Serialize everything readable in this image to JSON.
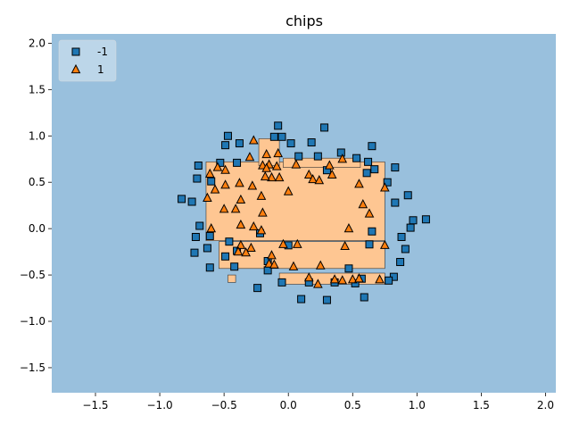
{
  "chart_data": {
    "type": "scatter",
    "title": "chips",
    "xlabel": "",
    "ylabel": "",
    "xlim": [
      -1.84,
      2.08
    ],
    "ylim": [
      -1.77,
      2.1
    ],
    "xticks": [
      -1.5,
      -1.0,
      -0.5,
      0.0,
      0.5,
      1.0,
      1.5,
      2.0
    ],
    "yticks": [
      -1.5,
      -1.0,
      -0.5,
      0.0,
      0.5,
      1.0,
      1.5,
      2.0
    ],
    "grid": false,
    "legend_position": "top-left",
    "colors": {
      "background_region": "#99c0dd",
      "decision_region": "#fec692",
      "class_neg": "#1f77b4",
      "class_pos": "#ff7f0e",
      "marker_edge": "#000000"
    },
    "decision_region_rects": [
      [
        -0.64,
        -0.13,
        0.75,
        0.72
      ],
      [
        -0.23,
        0.68,
        -0.07,
        0.97
      ],
      [
        -0.04,
        0.66,
        0.56,
        0.76
      ],
      [
        -0.54,
        -0.43,
        0.75,
        -0.14
      ],
      [
        -0.07,
        -0.6,
        0.75,
        -0.48
      ],
      [
        -0.47,
        -0.58,
        -0.41,
        -0.5
      ]
    ],
    "series": [
      {
        "name": "-1",
        "marker": "square",
        "points": [
          [
            -0.08,
            1.11
          ],
          [
            -0.05,
            0.99
          ],
          [
            0.28,
            1.09
          ],
          [
            0.18,
            0.93
          ],
          [
            0.02,
            0.92
          ],
          [
            -0.11,
            0.99
          ],
          [
            0.65,
            0.89
          ],
          [
            -0.49,
            0.9
          ],
          [
            -0.47,
            1.0
          ],
          [
            -0.38,
            0.92
          ],
          [
            0.41,
            0.82
          ],
          [
            0.08,
            0.78
          ],
          [
            0.23,
            0.78
          ],
          [
            0.53,
            0.76
          ],
          [
            0.62,
            0.72
          ],
          [
            -0.53,
            0.71
          ],
          [
            -0.4,
            0.71
          ],
          [
            -0.7,
            0.68
          ],
          [
            0.83,
            0.66
          ],
          [
            0.67,
            0.64
          ],
          [
            0.3,
            0.63
          ],
          [
            0.61,
            0.6
          ],
          [
            -0.71,
            0.54
          ],
          [
            -0.6,
            0.51
          ],
          [
            0.77,
            0.5
          ],
          [
            0.93,
            0.36
          ],
          [
            -0.83,
            0.32
          ],
          [
            -0.75,
            0.29
          ],
          [
            0.83,
            0.28
          ],
          [
            0.97,
            0.09
          ],
          [
            1.07,
            0.1
          ],
          [
            -0.69,
            0.03
          ],
          [
            0.95,
            0.01
          ],
          [
            0.65,
            -0.03
          ],
          [
            -0.22,
            -0.05
          ],
          [
            -0.61,
            -0.08
          ],
          [
            -0.72,
            -0.09
          ],
          [
            0.88,
            -0.09
          ],
          [
            -0.46,
            -0.14
          ],
          [
            0.0,
            -0.18
          ],
          [
            0.63,
            -0.17
          ],
          [
            -0.63,
            -0.21
          ],
          [
            0.91,
            -0.22
          ],
          [
            -0.73,
            -0.26
          ],
          [
            -0.49,
            -0.3
          ],
          [
            -0.4,
            -0.24
          ],
          [
            0.87,
            -0.36
          ],
          [
            -0.16,
            -0.35
          ],
          [
            -0.42,
            -0.41
          ],
          [
            -0.61,
            -0.42
          ],
          [
            0.47,
            -0.43
          ],
          [
            -0.16,
            -0.45
          ],
          [
            0.82,
            -0.52
          ],
          [
            0.57,
            -0.54
          ],
          [
            0.78,
            -0.56
          ],
          [
            0.16,
            -0.58
          ],
          [
            0.36,
            -0.58
          ],
          [
            -0.05,
            -0.58
          ],
          [
            0.52,
            -0.59
          ],
          [
            -0.24,
            -0.64
          ],
          [
            0.59,
            -0.74
          ],
          [
            0.1,
            -0.76
          ],
          [
            0.3,
            -0.77
          ]
        ]
      },
      {
        "name": "1",
        "marker": "triangle",
        "points": [
          [
            -0.27,
            0.95
          ],
          [
            -0.08,
            0.81
          ],
          [
            -0.17,
            0.8
          ],
          [
            -0.3,
            0.77
          ],
          [
            0.42,
            0.75
          ],
          [
            -0.2,
            0.68
          ],
          [
            -0.15,
            0.69
          ],
          [
            0.06,
            0.69
          ],
          [
            0.32,
            0.68
          ],
          [
            -0.09,
            0.67
          ],
          [
            -0.55,
            0.66
          ],
          [
            -0.17,
            0.65
          ],
          [
            -0.49,
            0.63
          ],
          [
            -0.61,
            0.59
          ],
          [
            0.34,
            0.58
          ],
          [
            0.16,
            0.58
          ],
          [
            -0.13,
            0.55
          ],
          [
            -0.18,
            0.56
          ],
          [
            -0.07,
            0.55
          ],
          [
            0.19,
            0.53
          ],
          [
            0.24,
            0.52
          ],
          [
            -0.38,
            0.49
          ],
          [
            0.55,
            0.48
          ],
          [
            -0.49,
            0.47
          ],
          [
            -0.28,
            0.46
          ],
          [
            0.75,
            0.44
          ],
          [
            -0.57,
            0.42
          ],
          [
            0.0,
            0.4
          ],
          [
            -0.21,
            0.35
          ],
          [
            -0.63,
            0.33
          ],
          [
            -0.37,
            0.31
          ],
          [
            0.58,
            0.26
          ],
          [
            -0.5,
            0.21
          ],
          [
            -0.41,
            0.21
          ],
          [
            -0.2,
            0.17
          ],
          [
            0.63,
            0.16
          ],
          [
            -0.37,
            0.04
          ],
          [
            -0.27,
            0.02
          ],
          [
            0.47,
            0.0
          ],
          [
            -0.6,
            0.0
          ],
          [
            -0.21,
            -0.02
          ],
          [
            0.75,
            -0.18
          ],
          [
            -0.04,
            -0.17
          ],
          [
            0.07,
            -0.17
          ],
          [
            -0.37,
            -0.18
          ],
          [
            0.44,
            -0.19
          ],
          [
            -0.29,
            -0.21
          ],
          [
            -0.39,
            -0.25
          ],
          [
            -0.33,
            -0.26
          ],
          [
            -0.13,
            -0.29
          ],
          [
            -0.15,
            -0.38
          ],
          [
            -0.11,
            -0.39
          ],
          [
            0.04,
            -0.41
          ],
          [
            0.25,
            -0.4
          ],
          [
            0.16,
            -0.53
          ],
          [
            0.5,
            -0.55
          ],
          [
            0.36,
            -0.55
          ],
          [
            0.42,
            -0.56
          ],
          [
            0.55,
            -0.54
          ],
          [
            0.71,
            -0.55
          ],
          [
            0.23,
            -0.6
          ]
        ]
      }
    ]
  }
}
